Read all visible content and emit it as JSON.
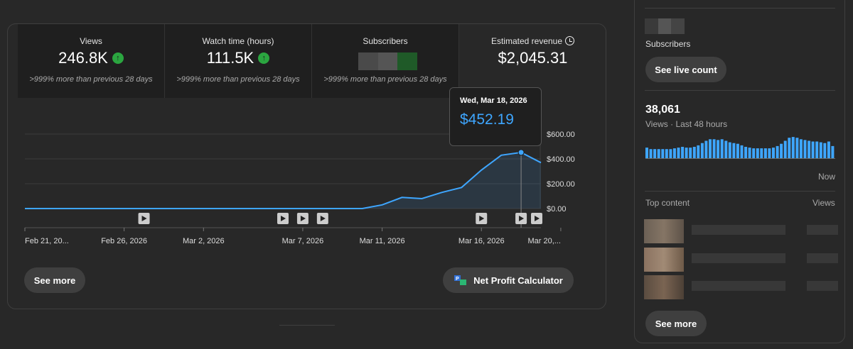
{
  "metrics": [
    {
      "label": "Views",
      "value": "246.8K",
      "compare": ">999% more than previous 28 days"
    },
    {
      "label": "Watch time (hours)",
      "value": "111.5K",
      "compare": ">999% more than previous 28 days"
    },
    {
      "label": "Subscribers",
      "value": "",
      "compare": ">999% more than previous 28 days"
    },
    {
      "label": "Estimated revenue",
      "value": "$2,045.31"
    }
  ],
  "tooltip": {
    "date": "Wed, Mar 18, 2026",
    "value": "$452.19"
  },
  "chart_data": {
    "type": "line",
    "title": "Estimated revenue",
    "x": [
      "Feb 21",
      "Feb 22",
      "Feb 23",
      "Feb 24",
      "Feb 25",
      "Feb 26",
      "Feb 27",
      "Feb 28",
      "Mar 1",
      "Mar 2",
      "Mar 3",
      "Mar 4",
      "Mar 5",
      "Mar 6",
      "Mar 7",
      "Mar 8",
      "Mar 9",
      "Mar 10",
      "Mar 11",
      "Mar 12",
      "Mar 13",
      "Mar 14",
      "Mar 15",
      "Mar 16",
      "Mar 17",
      "Mar 18",
      "Mar 19"
    ],
    "values": [
      0,
      0,
      0,
      0,
      0,
      0,
      0,
      0,
      0,
      0,
      0,
      0,
      0,
      0,
      0,
      0,
      0,
      0,
      30,
      90,
      80,
      130,
      170,
      310,
      430,
      452,
      370
    ],
    "ylim": [
      0,
      600
    ],
    "yticks": [
      "$0.00",
      "$200.00",
      "$400.00",
      "$600.00"
    ],
    "xticks": [
      "Feb 21, 20...",
      "Feb 26, 2026",
      "Mar 2, 2026",
      "Mar 7, 2026",
      "Mar 11, 2026",
      "Mar 16, 2026",
      "Mar 20,..."
    ],
    "xtick_index": [
      0,
      5,
      9,
      14,
      18,
      23,
      27
    ],
    "video_markers": [
      6,
      13,
      14,
      15,
      23,
      25,
      27
    ],
    "highlight_index": 25
  },
  "buttons": {
    "see_more": "See more",
    "net_profit": "Net Profit Calculator"
  },
  "sidebar": {
    "subscribers_label": "Subscribers",
    "see_live_count": "See live count",
    "views_count": "38,061",
    "views_caption": "Views · Last 48 hours",
    "now_label": "Now",
    "top_content": "Top content",
    "views_header": "Views",
    "see_more": "See more",
    "bars": [
      14,
      12,
      12,
      12,
      12,
      12,
      12,
      13,
      14,
      15,
      14,
      14,
      15,
      17,
      20,
      23,
      25,
      25,
      24,
      25,
      23,
      21,
      20,
      19,
      17,
      15,
      14,
      13,
      13,
      13,
      13,
      13,
      14,
      16,
      19,
      23,
      27,
      28,
      27,
      25,
      24,
      23,
      22,
      22,
      21,
      20,
      22,
      16
    ]
  },
  "colors": {
    "accent": "#3ea6ff",
    "up": "#2ba640"
  }
}
